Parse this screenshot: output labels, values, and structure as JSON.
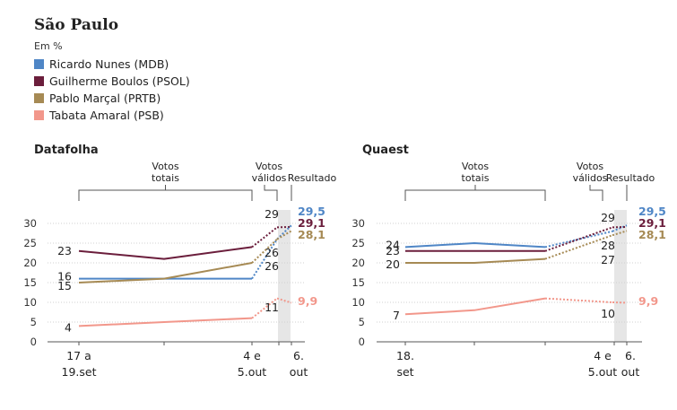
{
  "title": "São Paulo",
  "unit": "Em %",
  "colors": {
    "nunes": "#4f86c6",
    "boulos": "#6b1e3c",
    "marcal": "#a68a54",
    "tabata": "#f2978b"
  },
  "legend": [
    {
      "key": "nunes",
      "label": "Ricardo Nunes (MDB)"
    },
    {
      "key": "boulos",
      "label": "Guilherme Boulos (PSOL)"
    },
    {
      "key": "marcal",
      "label": "Pablo Marçal (PRTB)"
    },
    {
      "key": "tabata",
      "label": "Tabata Amaral (PSB)"
    }
  ],
  "chart_data": [
    {
      "type": "line",
      "title": "Datafolha",
      "ylim": [
        0,
        30
      ],
      "yticks": [
        "0",
        "5",
        "10",
        "15",
        "20",
        "25",
        "30"
      ],
      "x_tick_labels": [
        {
          "lines": [
            "17 a",
            "19.set"
          ]
        },
        {
          "lines": [
            "4 e",
            "5.out"
          ]
        },
        {
          "lines": [
            "6.",
            "out"
          ]
        }
      ],
      "annotations": {
        "total": [
          "Votos",
          "totais"
        ],
        "valid": [
          "Votos",
          "válidos"
        ],
        "result": "Resultado"
      },
      "series": [
        {
          "key": "boulos",
          "poll_values": [
            23,
            21,
            24
          ],
          "valid": 29,
          "result": 29.1,
          "start_label": "23",
          "valid_label": "29",
          "result_label": "29,1"
        },
        {
          "key": "nunes",
          "poll_values": [
            16,
            16,
            16
          ],
          "valid": 26,
          "result": 29.5,
          "start_label": "16",
          "valid_label": "26",
          "result_label": "29,5"
        },
        {
          "key": "marcal",
          "poll_values": [
            15,
            16,
            20
          ],
          "valid": 26,
          "result": 28.1,
          "start_label": "15",
          "valid_label": "26",
          "result_label": "28,1"
        },
        {
          "key": "tabata",
          "poll_values": [
            4,
            5,
            6
          ],
          "valid": 11,
          "result": 9.9,
          "start_label": "4",
          "valid_label": "11",
          "result_label": "9,9"
        }
      ]
    },
    {
      "type": "line",
      "title": "Quaest",
      "ylim": [
        0,
        30
      ],
      "yticks": [
        "0",
        "5",
        "10",
        "15",
        "20",
        "25",
        "30"
      ],
      "x_tick_labels": [
        {
          "lines": [
            "18.",
            "set"
          ]
        },
        {
          "lines": [
            "4 e",
            "5.out"
          ]
        },
        {
          "lines": [
            "6.",
            "out"
          ]
        }
      ],
      "annotations": {
        "total": [
          "Votos",
          "totais"
        ],
        "valid": [
          "Votos",
          "válidos"
        ],
        "result": "Resultado"
      },
      "series": [
        {
          "key": "nunes",
          "poll_values": [
            24,
            25,
            24
          ],
          "valid": 28,
          "result": 29.5,
          "start_label": "24",
          "valid_label": "28",
          "result_label": "29,5"
        },
        {
          "key": "boulos",
          "poll_values": [
            23,
            23,
            23
          ],
          "valid": 29,
          "result": 29.1,
          "start_label": "23",
          "valid_label": "29",
          "result_label": "29,1"
        },
        {
          "key": "marcal",
          "poll_values": [
            20,
            20,
            21
          ],
          "valid": 27,
          "result": 28.1,
          "start_label": "20",
          "valid_label": "27",
          "result_label": "28,1"
        },
        {
          "key": "tabata",
          "poll_values": [
            7,
            8,
            11
          ],
          "valid": 10,
          "result": 9.9,
          "start_label": "7",
          "valid_label": "10",
          "result_label": "9,9"
        }
      ]
    }
  ]
}
